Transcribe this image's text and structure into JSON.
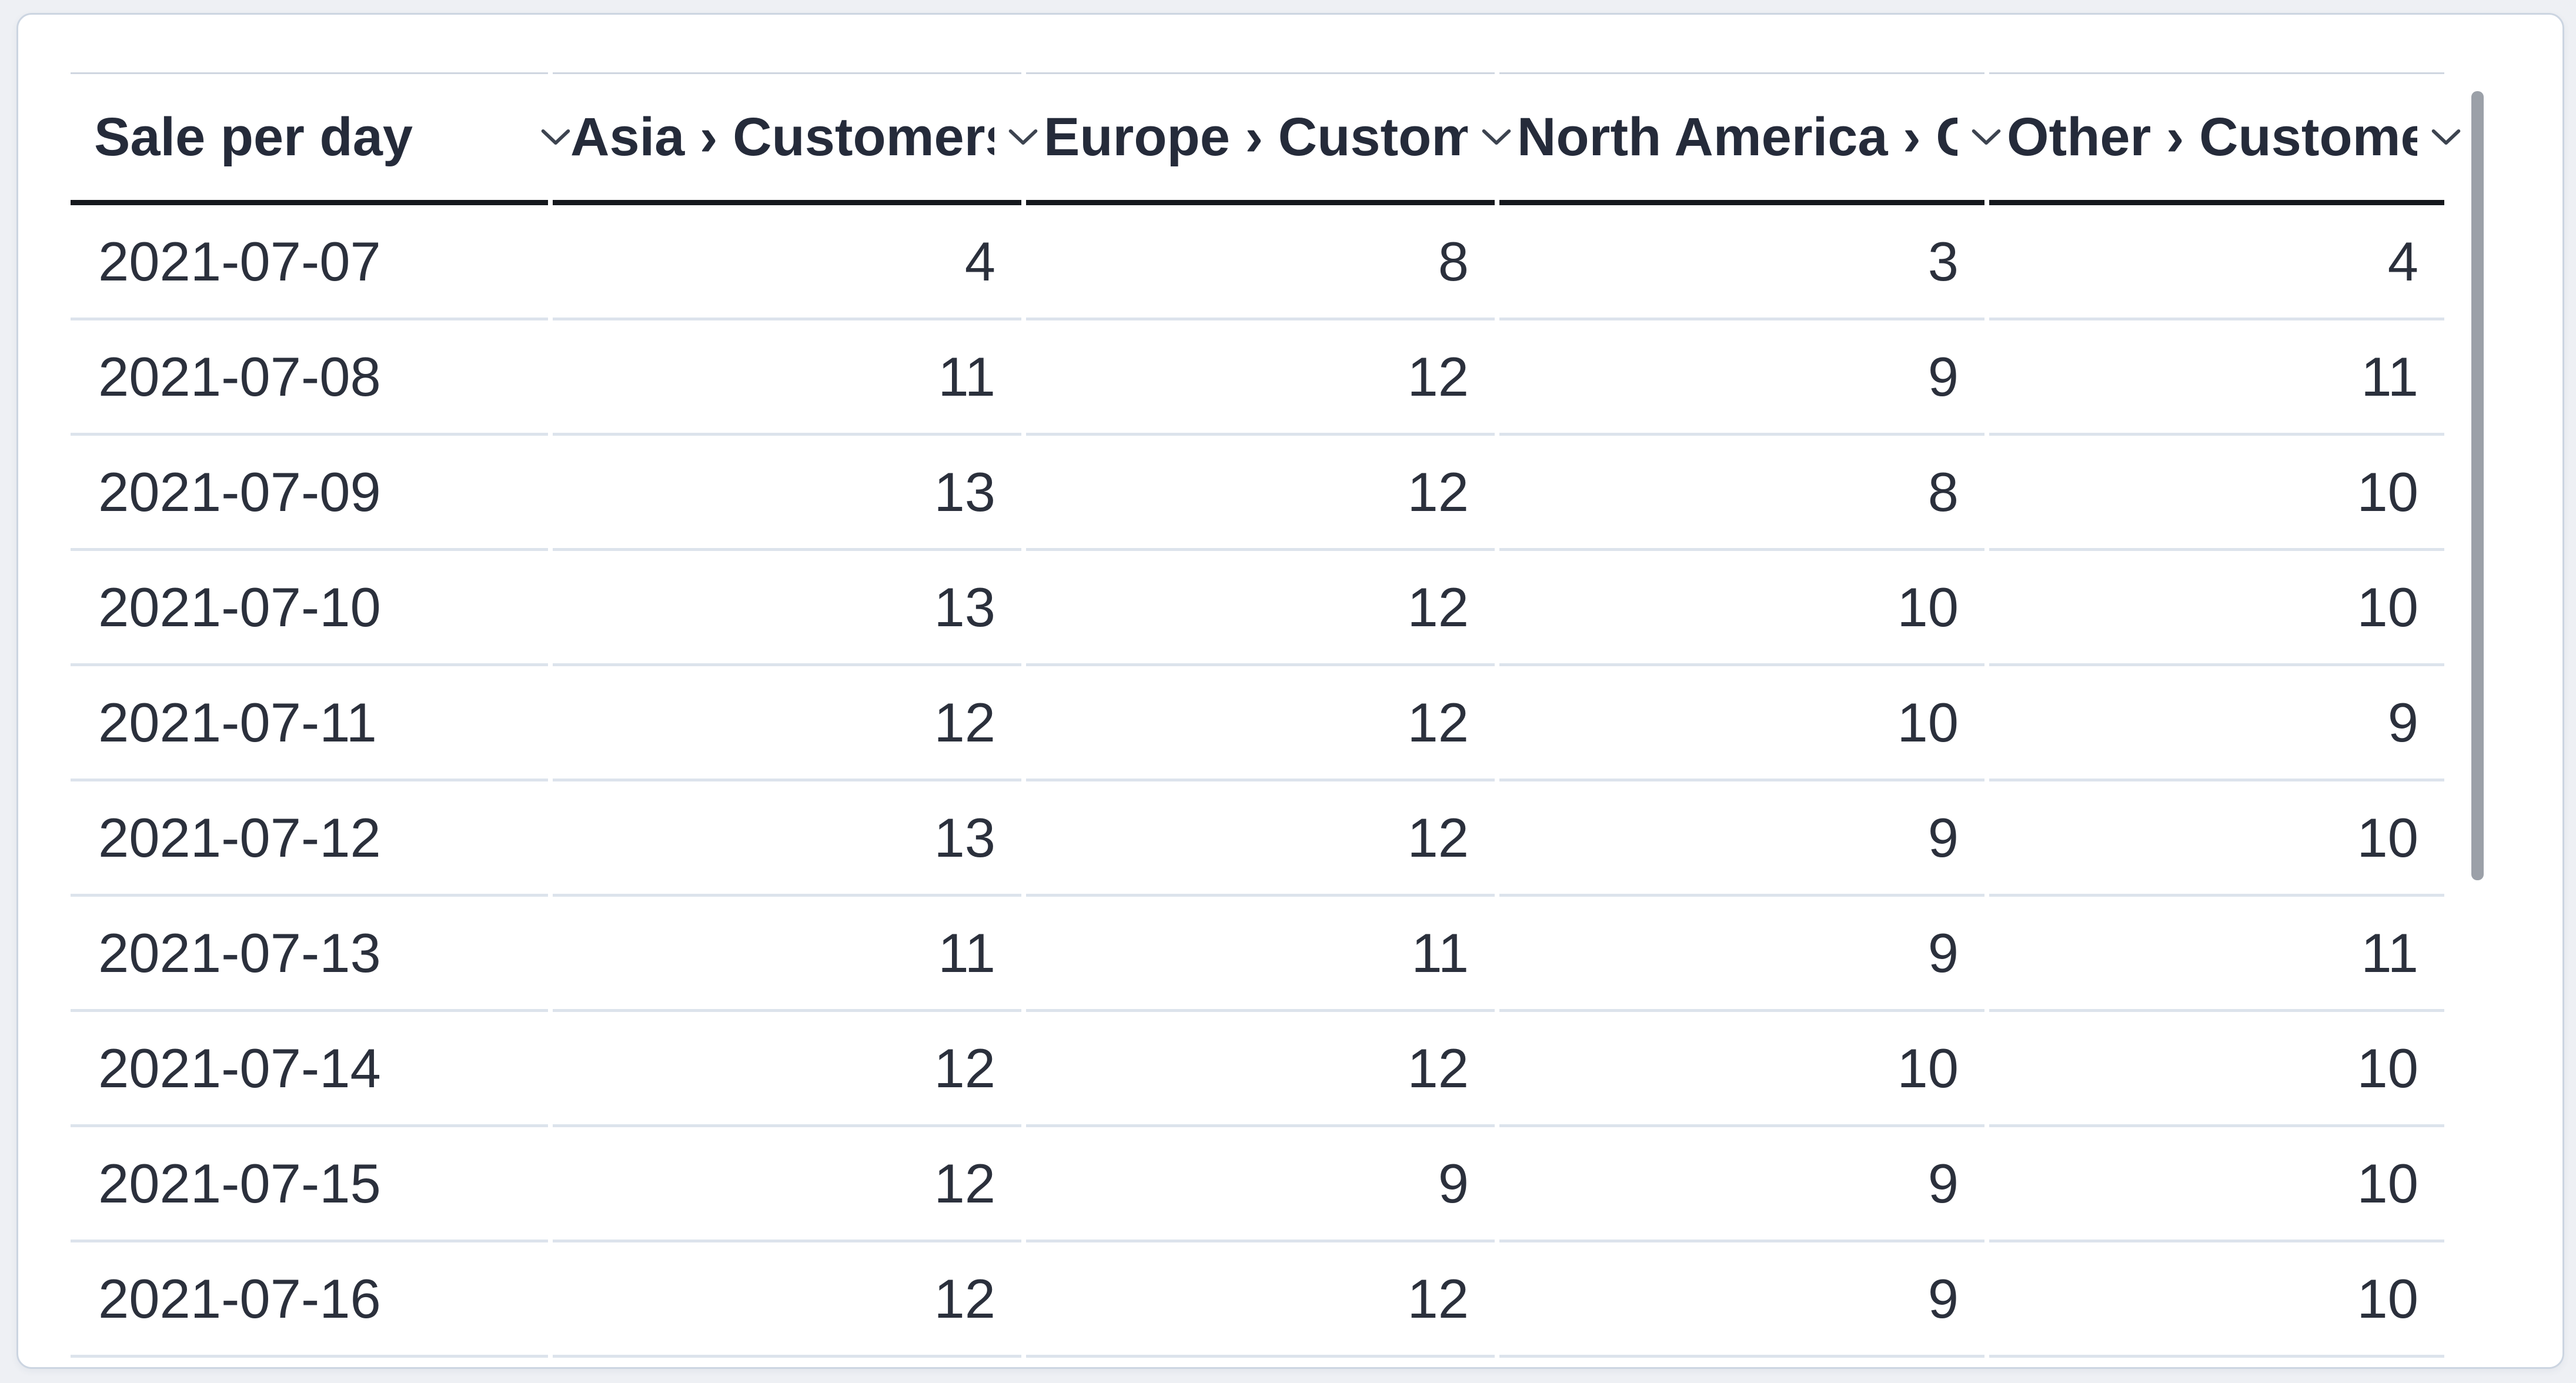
{
  "card": {
    "type": "table-visualization"
  },
  "table": {
    "columns": [
      {
        "id": "date",
        "label": "Sale per day",
        "align": "left"
      },
      {
        "id": "asia",
        "label": "Asia › Customers",
        "align": "right"
      },
      {
        "id": "europe",
        "label": "Europe › Customers",
        "align": "right"
      },
      {
        "id": "north_america",
        "label": "North America › Customers",
        "align": "right"
      },
      {
        "id": "other",
        "label": "Other › Customers",
        "align": "right"
      }
    ],
    "rows": [
      {
        "date": "2021-07-07",
        "values": [
          4,
          8,
          3,
          4
        ]
      },
      {
        "date": "2021-07-08",
        "values": [
          11,
          12,
          9,
          11
        ]
      },
      {
        "date": "2021-07-09",
        "values": [
          13,
          12,
          8,
          10
        ]
      },
      {
        "date": "2021-07-10",
        "values": [
          13,
          12,
          10,
          10
        ]
      },
      {
        "date": "2021-07-11",
        "values": [
          12,
          12,
          10,
          9
        ]
      },
      {
        "date": "2021-07-12",
        "values": [
          13,
          12,
          9,
          10
        ]
      },
      {
        "date": "2021-07-13",
        "values": [
          11,
          11,
          9,
          11
        ]
      },
      {
        "date": "2021-07-14",
        "values": [
          12,
          12,
          10,
          10
        ]
      },
      {
        "date": "2021-07-15",
        "values": [
          12,
          9,
          9,
          10
        ]
      },
      {
        "date": "2021-07-16",
        "values": [
          12,
          12,
          9,
          10
        ]
      }
    ]
  },
  "icons": {
    "column_menu": "chevron-down-icon"
  },
  "scrollbar": {
    "orientation": "vertical",
    "visible": true
  },
  "colors": {
    "page_background": "#eef0f4",
    "card_background": "#ffffff",
    "card_border": "#ccd5e1",
    "header_text": "#252b3a",
    "body_text": "#2b303c",
    "header_underline": "#15181d",
    "header_topline": "#cfd6e0",
    "row_separator": "#dce3ec",
    "chevron": "#3d4450",
    "scrollbar_thumb": "#9ba0a8"
  }
}
